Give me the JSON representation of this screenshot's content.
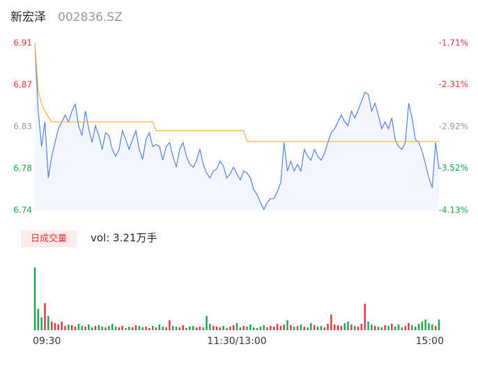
{
  "chart_data": [
    {
      "type": "line",
      "title": "新宏泽",
      "subtitle": "002836.SZ",
      "ylim": [
        6.74,
        6.91
      ],
      "yticks": [
        {
          "value": 6.91,
          "label": "6.91"
        },
        {
          "value": 6.8675,
          "label": "6.87"
        },
        {
          "value": 6.825,
          "label": "6.83"
        },
        {
          "value": 6.7825,
          "label": "6.78"
        },
        {
          "value": 6.74,
          "label": "6.74"
        }
      ],
      "y2lim": [
        -4.13,
        -1.71
      ],
      "y2ticks": [
        {
          "value": -1.71,
          "label": "-1.71%"
        },
        {
          "value": -2.31,
          "label": "-2.31%"
        },
        {
          "value": -2.92,
          "label": "-2.92%"
        },
        {
          "value": -3.52,
          "label": "-3.52%"
        },
        {
          "value": -4.13,
          "label": "-4.13%"
        }
      ],
      "tick_colors": [
        "#e0313b",
        "#e0313b",
        "#999999",
        "#16a34a",
        "#16a34a"
      ],
      "grid": false,
      "series": [
        {
          "color": "#4e7fe0",
          "fill": "#f3f6fd",
          "values": [
            6.91,
            6.841,
            6.805,
            6.83,
            6.773,
            6.795,
            6.809,
            6.823,
            6.83,
            6.837,
            6.83,
            6.841,
            6.848,
            6.826,
            6.816,
            6.841,
            6.823,
            6.809,
            6.826,
            6.816,
            6.802,
            6.819,
            6.816,
            6.802,
            6.795,
            6.802,
            6.821,
            6.812,
            6.802,
            6.812,
            6.821,
            6.802,
            6.792,
            6.812,
            6.819,
            6.805,
            6.807,
            6.805,
            6.791,
            6.805,
            6.809,
            6.795,
            6.784,
            6.802,
            6.809,
            6.795,
            6.787,
            6.784,
            6.791,
            6.802,
            6.787,
            6.778,
            6.773,
            6.78,
            6.782,
            6.79,
            6.785,
            6.773,
            6.777,
            6.784,
            6.777,
            6.771,
            6.78,
            6.778,
            6.773,
            6.761,
            6.756,
            6.748,
            6.741,
            6.748,
            6.752,
            6.752,
            6.759,
            6.768,
            6.809,
            6.78,
            6.79,
            6.78,
            6.787,
            6.78,
            6.802,
            6.795,
            6.791,
            6.802,
            6.795,
            6.791,
            6.798,
            6.809,
            6.819,
            6.823,
            6.83,
            6.837,
            6.83,
            6.826,
            6.841,
            6.834,
            6.842,
            6.851,
            6.86,
            6.858,
            6.841,
            6.849,
            6.837,
            6.823,
            6.83,
            6.823,
            6.834,
            6.812,
            6.805,
            6.802,
            6.809,
            6.849,
            6.834,
            6.812,
            6.809,
            6.8,
            6.787,
            6.773,
            6.763,
            6.809,
            6.782
          ]
        },
        {
          "color": "#f5b335",
          "values": [
            6.91,
            6.862,
            6.848,
            6.841,
            6.835,
            6.83,
            6.83,
            6.83,
            6.83,
            6.83,
            6.83,
            6.83,
            6.83,
            6.83,
            6.83,
            6.83,
            6.83,
            6.83,
            6.83,
            6.83,
            6.83,
            6.83,
            6.83,
            6.83,
            6.83,
            6.83,
            6.83,
            6.83,
            6.83,
            6.83,
            6.83,
            6.83,
            6.83,
            6.83,
            6.83,
            6.83,
            6.821,
            6.821,
            6.821,
            6.821,
            6.821,
            6.821,
            6.821,
            6.821,
            6.821,
            6.821,
            6.821,
            6.821,
            6.821,
            6.821,
            6.821,
            6.821,
            6.821,
            6.821,
            6.821,
            6.821,
            6.821,
            6.821,
            6.821,
            6.821,
            6.821,
            6.821,
            6.821,
            6.81,
            6.81,
            6.81,
            6.81,
            6.81,
            6.81,
            6.81,
            6.81,
            6.81,
            6.81,
            6.81,
            6.81,
            6.81,
            6.81,
            6.81,
            6.81,
            6.81,
            6.81,
            6.81,
            6.81,
            6.81,
            6.81,
            6.81,
            6.81,
            6.81,
            6.81,
            6.81,
            6.81,
            6.81,
            6.81,
            6.81,
            6.81,
            6.81,
            6.81,
            6.81,
            6.81,
            6.81,
            6.81,
            6.81,
            6.81,
            6.81,
            6.81,
            6.81,
            6.81,
            6.81,
            6.81,
            6.81,
            6.81,
            6.81,
            6.81,
            6.81,
            6.81,
            6.81,
            6.81,
            6.81,
            6.81,
            6.81,
            6.81
          ]
        }
      ]
    },
    {
      "type": "bar",
      "title": "日成交量",
      "subtitle": "vol: 3.21万手",
      "up_color": "#e0313b",
      "down_color": "#16a34a",
      "categories": [
        "09:30",
        null,
        null,
        null,
        null,
        null,
        null,
        null,
        null,
        null,
        null,
        null,
        null,
        null,
        null,
        null,
        null,
        null,
        null,
        null,
        null,
        null,
        null,
        null,
        null,
        null,
        null,
        null,
        null,
        null,
        null,
        null,
        null,
        null,
        null,
        null,
        null,
        null,
        null,
        null,
        null,
        null,
        null,
        null,
        null,
        null,
        null,
        null,
        null,
        null,
        null,
        null,
        null,
        null,
        null,
        null,
        null,
        null,
        null,
        null,
        "11:30/13:00",
        null,
        null,
        null,
        null,
        null,
        null,
        null,
        null,
        null,
        null,
        null,
        null,
        null,
        null,
        null,
        null,
        null,
        null,
        null,
        null,
        null,
        null,
        null,
        null,
        null,
        null,
        null,
        null,
        null,
        null,
        null,
        null,
        null,
        null,
        null,
        null,
        null,
        null,
        null,
        null,
        null,
        null,
        null,
        null,
        null,
        null,
        null,
        null,
        null,
        null,
        null,
        null,
        null,
        null,
        null,
        null,
        null,
        null,
        null,
        "15:00"
      ],
      "values": [
        88,
        30,
        18,
        38,
        20,
        12,
        10,
        8,
        12,
        6,
        8,
        7,
        5,
        9,
        6,
        5,
        8,
        4,
        6,
        7,
        5,
        4,
        6,
        9,
        5,
        4,
        6,
        3,
        5,
        4,
        7,
        6,
        4,
        5,
        3,
        6,
        4,
        8,
        5,
        4,
        14,
        6,
        5,
        4,
        7,
        3,
        5,
        6,
        4,
        5,
        4,
        20,
        9,
        6,
        5,
        4,
        6,
        3,
        5,
        7,
        10,
        4,
        6,
        5,
        8,
        4,
        3,
        5,
        7,
        4,
        6,
        5,
        9,
        6,
        8,
        14,
        7,
        5,
        6,
        8,
        5,
        4,
        10,
        7,
        5,
        6,
        4,
        9,
        22,
        8,
        7,
        6,
        10,
        12,
        8,
        6,
        5,
        9,
        37,
        12,
        8,
        6,
        5,
        4,
        7,
        6,
        9,
        5,
        8,
        4,
        6,
        10,
        7,
        5,
        9,
        12,
        15,
        10,
        8,
        6,
        15
      ]
    }
  ]
}
